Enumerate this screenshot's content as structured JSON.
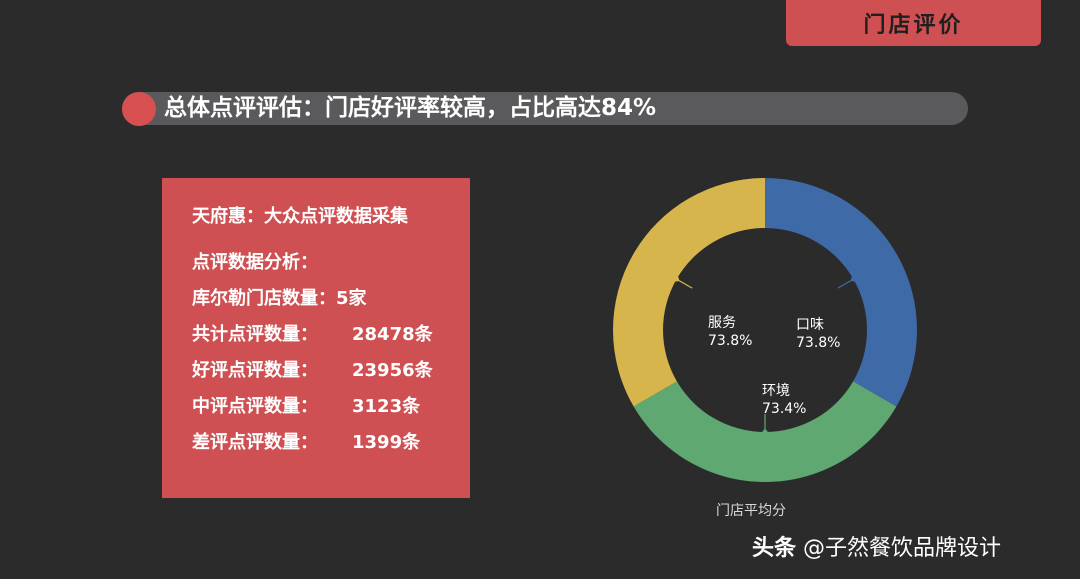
{
  "corner_tab": "门店评价",
  "headline": "总体点评评估：门店好评率较高，占比高达84%",
  "card": {
    "title": "天府惠：大众点评数据采集",
    "subtitle": "点评数据分析：",
    "rows": [
      {
        "label": "库尔勒门店数量：",
        "value": "5家"
      },
      {
        "label": "共计点评数量：",
        "value": "28478条"
      },
      {
        "label": "好评点评数量：",
        "value": "23956条"
      },
      {
        "label": "中评点评数量：",
        "value": "3123条"
      },
      {
        "label": "差评点评数量：",
        "value": "1399条"
      }
    ]
  },
  "chart_data": {
    "type": "pie",
    "title": "门店平均分",
    "slices": [
      {
        "name": "口味",
        "value": 73.8,
        "value_label": "73.8%",
        "color": "#3e6aa8"
      },
      {
        "name": "环境",
        "value": 73.4,
        "value_label": "73.4%",
        "color": "#5fa871"
      },
      {
        "name": "服务",
        "value": 73.8,
        "value_label": "73.8%",
        "color": "#d6b54c"
      }
    ]
  },
  "watermark": {
    "brand": "头条",
    "handle": "@子然餐饮品牌设计"
  }
}
